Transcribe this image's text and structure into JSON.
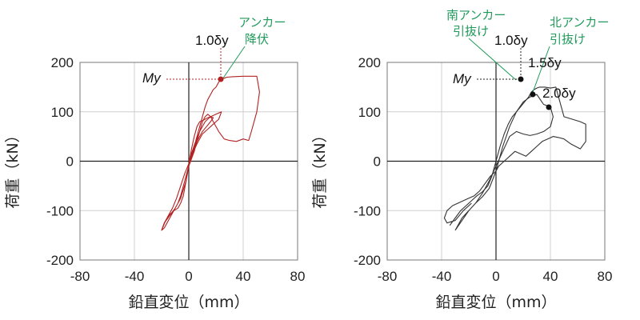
{
  "chart_data": [
    {
      "type": "line",
      "xlabel": "鉛直変位（mm）",
      "ylabel": "荷重（kN）",
      "xlim": [
        -80,
        80
      ],
      "ylim": [
        -200,
        200
      ],
      "xticks": [
        "-80",
        "-40",
        "0",
        "40",
        "80"
      ],
      "yticks": [
        "200",
        "100",
        "0",
        "-100",
        "-200"
      ],
      "grid": true,
      "series": [
        {
          "color": "#b22222",
          "x": [
            0,
            5,
            8,
            10,
            12,
            14,
            16,
            18,
            20,
            22,
            24,
            26,
            28,
            32,
            40,
            50,
            52,
            50,
            46,
            44,
            40,
            35,
            30,
            26,
            22,
            18,
            16,
            14,
            12,
            10,
            8,
            6,
            4,
            2,
            0,
            -2,
            -4,
            -6,
            -8,
            -10,
            -12,
            -14,
            -16,
            -18,
            -20,
            -18,
            -14,
            -10,
            -6,
            -2,
            0,
            4,
            8,
            12,
            16,
            20,
            24,
            22,
            18,
            14,
            10,
            6,
            2,
            0
          ],
          "y": [
            0,
            40,
            70,
            90,
            110,
            125,
            135,
            145,
            150,
            160,
            167,
            168,
            170,
            171,
            172,
            172,
            140,
            100,
            60,
            42,
            45,
            40,
            42,
            45,
            60,
            80,
            90,
            95,
            90,
            80,
            60,
            40,
            20,
            5,
            -10,
            -30,
            -50,
            -70,
            -85,
            -95,
            -105,
            -115,
            -125,
            -135,
            -140,
            -125,
            -110,
            -95,
            -75,
            -40,
            -10,
            30,
            60,
            80,
            90,
            95,
            100,
            85,
            75,
            65,
            55,
            35,
            10,
            0
          ]
        },
        {
          "color": "#b22222",
          "x": [
            -20,
            -17,
            -14,
            -11,
            -8,
            -6,
            -4,
            -2,
            0,
            2,
            4,
            6,
            8,
            10,
            12,
            14,
            16,
            18,
            16,
            13,
            10,
            8,
            5,
            3,
            0,
            -3,
            -6,
            -9,
            -12,
            -15,
            -18,
            -20
          ],
          "y": [
            -140,
            -120,
            -108,
            -100,
            -95,
            -85,
            -70,
            -40,
            -5,
            25,
            50,
            70,
            80,
            82,
            85,
            88,
            90,
            88,
            80,
            70,
            60,
            50,
            35,
            15,
            -5,
            -25,
            -50,
            -75,
            -95,
            -110,
            -125,
            -140
          ]
        }
      ],
      "annotations": [
        {
          "text": "アンカー",
          "line2": "降伏",
          "color": "green"
        },
        {
          "text": "1.0δy"
        },
        {
          "text": "My",
          "x": 25,
          "y": 170
        }
      ]
    },
    {
      "type": "line",
      "xlabel": "鉛直変位（mm）",
      "ylabel": "荷重（kN）",
      "xlim": [
        -80,
        80
      ],
      "ylim": [
        -200,
        200
      ],
      "xticks": [
        "-80",
        "-40",
        "0",
        "40",
        "80"
      ],
      "yticks": [
        "200",
        "100",
        "0",
        "-100",
        "-200"
      ],
      "grid": true,
      "series": [
        {
          "color": "#333333",
          "x": [
            -34,
            -30,
            -26,
            -22,
            -18,
            -14,
            -10,
            -6,
            -3,
            0,
            3,
            6,
            9,
            12,
            15,
            18,
            21,
            24,
            26,
            28,
            30,
            32,
            36,
            40,
            44,
            50,
            56,
            62,
            66,
            66,
            62,
            55,
            50,
            46,
            42,
            38,
            34,
            30,
            26,
            22,
            18,
            14,
            10,
            6,
            2,
            0,
            -4,
            -8,
            -12,
            -16,
            -20,
            -24,
            -28,
            -32,
            -36,
            -38,
            -36,
            -30,
            -24,
            -18
          ],
          "y": [
            -130,
            -115,
            -100,
            -90,
            -80,
            -70,
            -62,
            -50,
            -30,
            0,
            30,
            55,
            75,
            90,
            100,
            110,
            120,
            130,
            140,
            145,
            148,
            150,
            150,
            148,
            150,
            90,
            85,
            80,
            75,
            40,
            25,
            35,
            45,
            48,
            50,
            45,
            40,
            30,
            20,
            10,
            15,
            20,
            10,
            0,
            -10,
            -20,
            -30,
            -45,
            -60,
            -70,
            -75,
            -80,
            -85,
            -90,
            -100,
            -115,
            -125,
            -120,
            -100,
            -85
          ]
        },
        {
          "color": "#333333",
          "x": [
            -30,
            -25,
            -20,
            -15,
            -10,
            -5,
            0,
            5,
            10,
            15,
            20,
            25,
            30,
            35,
            40,
            42,
            40,
            35,
            30,
            25,
            20,
            15,
            10,
            5,
            0,
            -5,
            -10,
            -15,
            -20,
            -25,
            -30
          ],
          "y": [
            -140,
            -120,
            -100,
            -85,
            -72,
            -55,
            -20,
            30,
            70,
            100,
            120,
            130,
            135,
            115,
            110,
            90,
            70,
            60,
            55,
            52,
            55,
            60,
            50,
            20,
            -10,
            -40,
            -65,
            -85,
            -100,
            -115,
            -140
          ]
        }
      ],
      "annotations": [
        {
          "text": "南アンカー",
          "line2": "引抜け",
          "color": "green"
        },
        {
          "text": "北アンカー",
          "line2": "引抜け",
          "color": "green"
        },
        {
          "text": "1.0δy"
        },
        {
          "text": "1.5δy"
        },
        {
          "text": "2.0δy"
        },
        {
          "text": "My",
          "x": 20,
          "y": 172
        }
      ]
    }
  ]
}
